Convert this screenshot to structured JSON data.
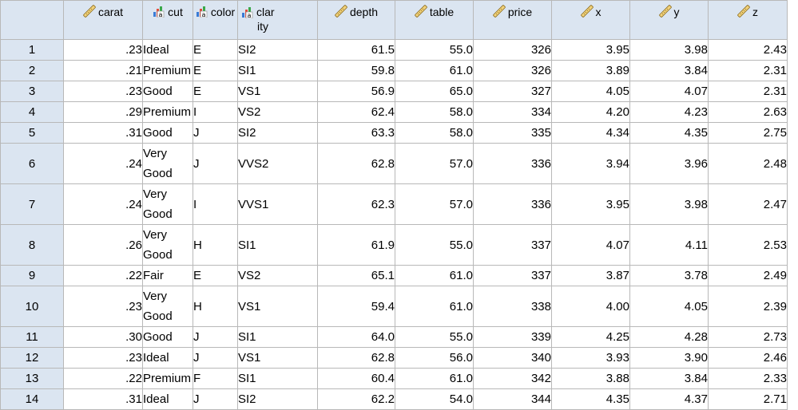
{
  "columns": [
    {
      "key": "carat",
      "label": "carat",
      "icon": "ruler-scale-icon",
      "align": "right"
    },
    {
      "key": "cut",
      "label": "cut",
      "icon": "nominal-bars-icon",
      "align": "left"
    },
    {
      "key": "color",
      "label": "color",
      "icon": "nominal-bars-icon",
      "align": "left"
    },
    {
      "key": "clarity",
      "label_line1": "clar",
      "label_line2": "ity",
      "icon": "nominal-bars-icon",
      "align": "left"
    },
    {
      "key": "depth",
      "label": "depth",
      "icon": "ruler-scale-icon",
      "align": "right"
    },
    {
      "key": "table",
      "label": "table",
      "icon": "ruler-scale-icon",
      "align": "right"
    },
    {
      "key": "price",
      "label": "price",
      "icon": "ruler-scale-icon",
      "align": "right"
    },
    {
      "key": "x",
      "label": "x",
      "icon": "ruler-scale-icon",
      "align": "right"
    },
    {
      "key": "y",
      "label": "y",
      "icon": "ruler-scale-icon",
      "align": "right"
    },
    {
      "key": "z",
      "label": "z",
      "icon": "ruler-scale-icon",
      "align": "right"
    }
  ],
  "rows": [
    {
      "n": "1",
      "carat": ".23",
      "cut": "Ideal",
      "color": "E",
      "clarity": "SI2",
      "depth": "61.5",
      "table": "55.0",
      "price": "326",
      "x": "3.95",
      "y": "3.98",
      "z": "2.43"
    },
    {
      "n": "2",
      "carat": ".21",
      "cut": "Premium",
      "color": "E",
      "clarity": "SI1",
      "depth": "59.8",
      "table": "61.0",
      "price": "326",
      "x": "3.89",
      "y": "3.84",
      "z": "2.31"
    },
    {
      "n": "3",
      "carat": ".23",
      "cut": "Good",
      "color": "E",
      "clarity": "VS1",
      "depth": "56.9",
      "table": "65.0",
      "price": "327",
      "x": "4.05",
      "y": "4.07",
      "z": "2.31"
    },
    {
      "n": "4",
      "carat": ".29",
      "cut": "Premium",
      "color": "I",
      "clarity": "VS2",
      "depth": "62.4",
      "table": "58.0",
      "price": "334",
      "x": "4.20",
      "y": "4.23",
      "z": "2.63"
    },
    {
      "n": "5",
      "carat": ".31",
      "cut": "Good",
      "color": "J",
      "clarity": "SI2",
      "depth": "63.3",
      "table": "58.0",
      "price": "335",
      "x": "4.34",
      "y": "4.35",
      "z": "2.75"
    },
    {
      "n": "6",
      "carat": ".24",
      "cut": "Very Good",
      "color": "J",
      "clarity": "VVS2",
      "depth": "62.8",
      "table": "57.0",
      "price": "336",
      "x": "3.94",
      "y": "3.96",
      "z": "2.48"
    },
    {
      "n": "7",
      "carat": ".24",
      "cut": "Very Good",
      "color": "I",
      "clarity": "VVS1",
      "depth": "62.3",
      "table": "57.0",
      "price": "336",
      "x": "3.95",
      "y": "3.98",
      "z": "2.47"
    },
    {
      "n": "8",
      "carat": ".26",
      "cut": "Very Good",
      "color": "H",
      "clarity": "SI1",
      "depth": "61.9",
      "table": "55.0",
      "price": "337",
      "x": "4.07",
      "y": "4.11",
      "z": "2.53"
    },
    {
      "n": "9",
      "carat": ".22",
      "cut": "Fair",
      "color": "E",
      "clarity": "VS2",
      "depth": "65.1",
      "table": "61.0",
      "price": "337",
      "x": "3.87",
      "y": "3.78",
      "z": "2.49"
    },
    {
      "n": "10",
      "carat": ".23",
      "cut": "Very Good",
      "color": "H",
      "clarity": "VS1",
      "depth": "59.4",
      "table": "61.0",
      "price": "338",
      "x": "4.00",
      "y": "4.05",
      "z": "2.39"
    },
    {
      "n": "11",
      "carat": ".30",
      "cut": "Good",
      "color": "J",
      "clarity": "SI1",
      "depth": "64.0",
      "table": "55.0",
      "price": "339",
      "x": "4.25",
      "y": "4.28",
      "z": "2.73"
    },
    {
      "n": "12",
      "carat": ".23",
      "cut": "Ideal",
      "color": "J",
      "clarity": "VS1",
      "depth": "62.8",
      "table": "56.0",
      "price": "340",
      "x": "3.93",
      "y": "3.90",
      "z": "2.46"
    },
    {
      "n": "13",
      "carat": ".22",
      "cut": "Premium",
      "color": "F",
      "clarity": "SI1",
      "depth": "60.4",
      "table": "61.0",
      "price": "342",
      "x": "3.88",
      "y": "3.84",
      "z": "2.33"
    },
    {
      "n": "14",
      "carat": ".31",
      "cut": "Ideal",
      "color": "J",
      "clarity": "SI2",
      "depth": "62.2",
      "table": "54.0",
      "price": "344",
      "x": "4.35",
      "y": "4.37",
      "z": "2.71"
    }
  ],
  "colors": {
    "header_bg": "#dbe5f1",
    "grid_line": "#b8b8b8"
  }
}
